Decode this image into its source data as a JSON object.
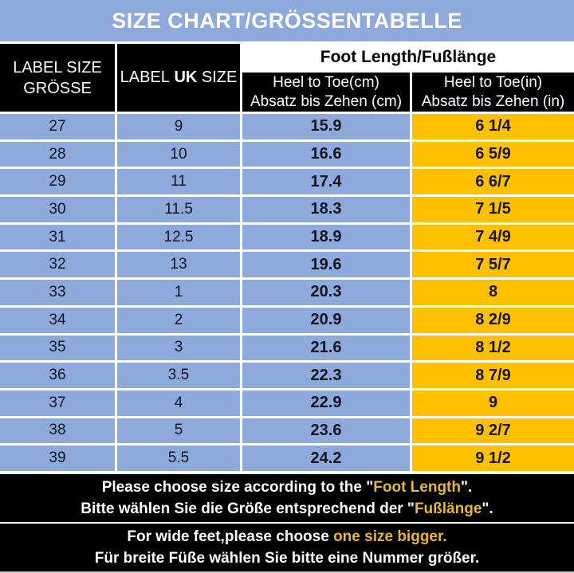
{
  "title": "SIZE CHART/GRÖSSENTABELLE",
  "colors": {
    "blue": "#8ea9db",
    "yellow": "#ffc000",
    "note_yellow": "#e6b73d",
    "header_bg": "#000000"
  },
  "header": {
    "col1_line1": "LABEL SIZE",
    "col1_line2": "GRÖSSE",
    "col2_pre": "LABEL",
    "col2_bold": "UK",
    "col2_post": "SIZE",
    "foot_length": "Foot Length/Fußlänge",
    "cm_line1": "Heel to Toe(cm)",
    "cm_line2": "Absatz bis Zehen (cm)",
    "in_line1": "Heel to Toe(in)",
    "in_line2": "Absatz bis Zehen (in)"
  },
  "table": {
    "rows": [
      {
        "label": "27",
        "uk": "9",
        "cm": "15.9",
        "in": "6 1/4"
      },
      {
        "label": "28",
        "uk": "10",
        "cm": "16.6",
        "in": "6 5/9"
      },
      {
        "label": "29",
        "uk": "11",
        "cm": "17.4",
        "in": "6 6/7"
      },
      {
        "label": "30",
        "uk": "11.5",
        "cm": "18.3",
        "in": "7 1/5"
      },
      {
        "label": "31",
        "uk": "12.5",
        "cm": "18.9",
        "in": "7 4/9"
      },
      {
        "label": "32",
        "uk": "13",
        "cm": "19.6",
        "in": "7 5/7"
      },
      {
        "label": "33",
        "uk": "1",
        "cm": "20.3",
        "in": "8"
      },
      {
        "label": "34",
        "uk": "2",
        "cm": "20.9",
        "in": "8 2/9"
      },
      {
        "label": "35",
        "uk": "3",
        "cm": "21.6",
        "in": "8 1/2"
      },
      {
        "label": "36",
        "uk": "3.5",
        "cm": "22.3",
        "in": "8 7/9"
      },
      {
        "label": "37",
        "uk": "4",
        "cm": "22.9",
        "in": "9"
      },
      {
        "label": "38",
        "uk": "5",
        "cm": "23.6",
        "in": "9 2/7"
      },
      {
        "label": "39",
        "uk": "5.5",
        "cm": "24.2",
        "in": "9 1/2"
      }
    ]
  },
  "notes": {
    "note1": {
      "l1_white1": "Please choose size according to the \"",
      "l1_yellow": "Foot Length",
      "l1_white2": "\".",
      "l2_white1": "Bitte wählen Sie die Größe entsprechend der \"",
      "l2_yellow": "Fußlänge",
      "l2_white2": "\"."
    },
    "note2": {
      "l1_white1": "For wide feet,please choose ",
      "l1_yellow": "one size bigger.",
      "l2": "Für breite Füße wählen Sie bitte eine Nummer größer."
    }
  }
}
